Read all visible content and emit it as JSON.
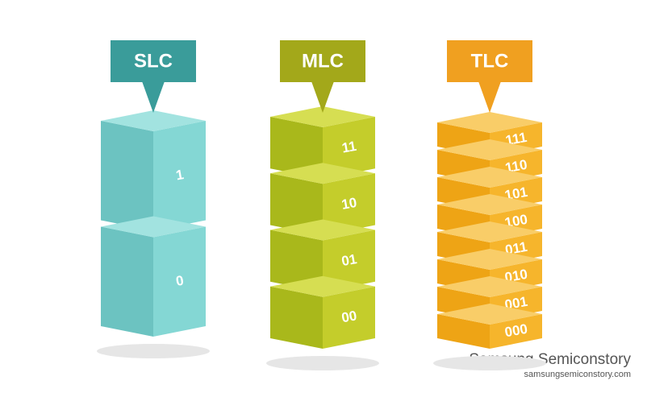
{
  "columns": [
    {
      "label": "SLC",
      "cells": [
        "1",
        "0"
      ]
    },
    {
      "label": "MLC",
      "cells": [
        "11",
        "10",
        "01",
        "00"
      ]
    },
    {
      "label": "TLC",
      "cells": [
        "111",
        "110",
        "101",
        "100",
        "011",
        "010",
        "001",
        "000"
      ]
    }
  ],
  "watermark": {
    "brand": "Samsung Semiconstory",
    "url": "samsungsemiconstory.com"
  }
}
